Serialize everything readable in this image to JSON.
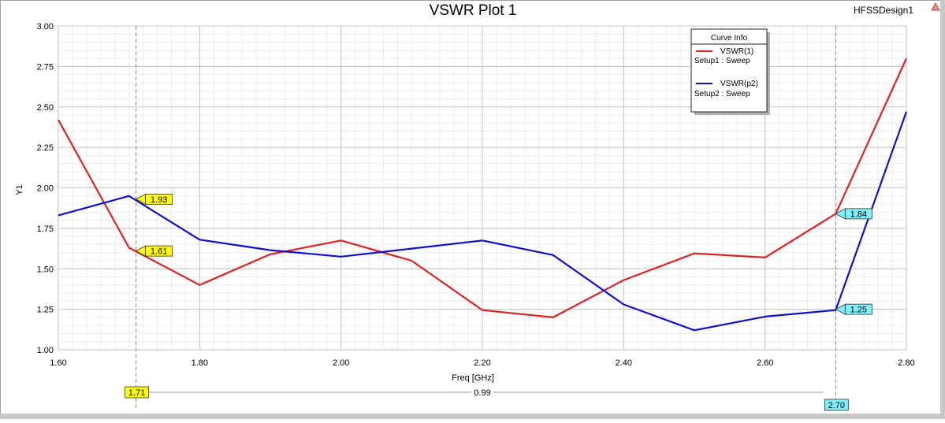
{
  "window": {
    "design_name": "HFSSDesign1",
    "corner_icon": "ansys-triangle-icon"
  },
  "chart_data": {
    "type": "line",
    "title": "VSWR Plot 1",
    "xlabel": "Freq [GHz]",
    "ylabel": "Y1",
    "xlim": [
      1.6,
      2.8
    ],
    "ylim": [
      1.0,
      3.0
    ],
    "grid": true,
    "x_ticks": [
      "1.60",
      "1.80",
      "2.00",
      "2.20",
      "2.40",
      "2.60",
      "2.80"
    ],
    "y_ticks": [
      "1.00",
      "1.25",
      "1.50",
      "1.75",
      "2.00",
      "2.25",
      "2.50",
      "2.75",
      "3.00"
    ],
    "x": [
      1.6,
      1.7,
      1.8,
      1.9,
      2.0,
      2.1,
      2.2,
      2.3,
      2.4,
      2.5,
      2.6,
      2.7,
      2.8
    ],
    "series": [
      {
        "name": "VSWR(1)",
        "setup": "Setup1 : Sweep",
        "color": "#dd2222",
        "values": [
          2.42,
          1.63,
          1.4,
          1.59,
          1.675,
          1.55,
          1.245,
          1.2,
          1.43,
          1.595,
          1.57,
          1.84,
          2.8
        ]
      },
      {
        "name": "VSWR(p2)",
        "setup": "Setup2 : Sweep",
        "color": "#1010cc",
        "values": [
          1.83,
          1.95,
          1.68,
          1.615,
          1.575,
          1.625,
          1.675,
          1.585,
          1.28,
          1.12,
          1.205,
          1.245,
          2.47
        ]
      }
    ],
    "legend": {
      "title": "Curve Info",
      "placement": "top-right"
    },
    "markers": [
      {
        "x": 1.71,
        "label": "1.71",
        "color": "#ffff00",
        "values": [
          {
            "y": 1.93,
            "label": "1.93"
          },
          {
            "y": 1.61,
            "label": "1.61"
          }
        ]
      },
      {
        "x": 2.7,
        "label": "2.70",
        "color": "#80f0ff",
        "values": [
          {
            "y": 1.84,
            "label": "1.84"
          },
          {
            "y": 1.25,
            "label": "1.25"
          }
        ]
      }
    ],
    "delta": {
      "label": "0.99"
    }
  }
}
